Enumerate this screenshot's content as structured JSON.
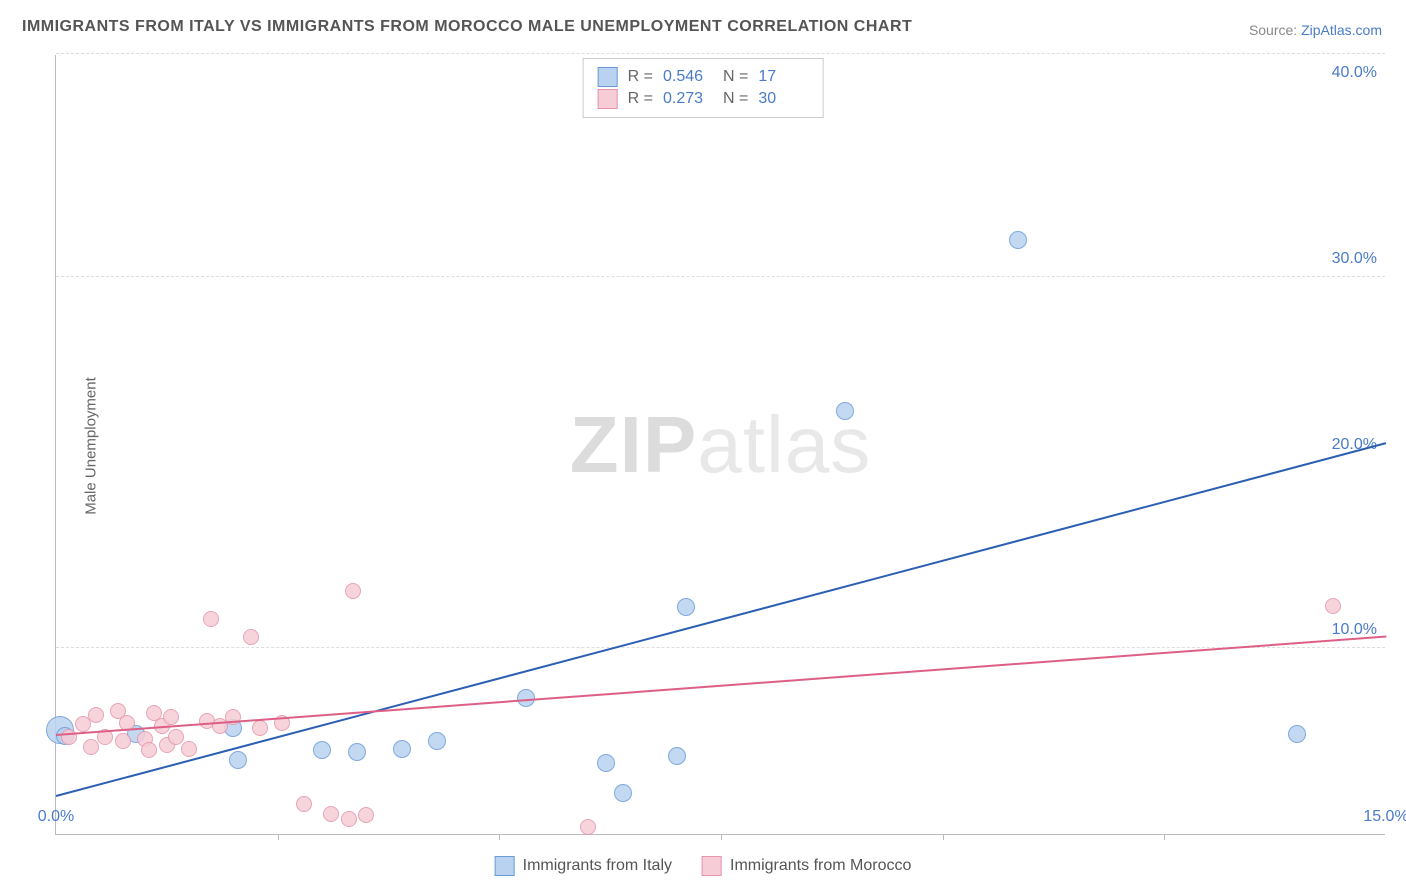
{
  "title": "IMMIGRANTS FROM ITALY VS IMMIGRANTS FROM MOROCCO MALE UNEMPLOYMENT CORRELATION CHART",
  "source_label": "Source: ",
  "source_link": "ZipAtlas.com",
  "ylabel": "Male Unemployment",
  "watermark_a": "ZIP",
  "watermark_b": "atlas",
  "chart": {
    "type": "scatter",
    "xlim": [
      0,
      15
    ],
    "ylim": [
      0,
      42
    ],
    "xticks": [
      0,
      15
    ],
    "xtick_labels": [
      "0.0%",
      "15.0%"
    ],
    "xtick_marks": [
      2.5,
      5.0,
      7.5,
      10.0,
      12.5
    ],
    "yticks": [
      10,
      20,
      30,
      40
    ],
    "ytick_labels": [
      "10.0%",
      "20.0%",
      "30.0%",
      "40.0%"
    ],
    "gridlines": [
      10,
      30,
      42
    ],
    "background_color": "#ffffff",
    "grid_color": "#dddddd",
    "axis_color": "#bbbbbb",
    "series": [
      {
        "name": "Immigrants from Italy",
        "marker_fill": "#b9d2ef",
        "marker_stroke": "#6a9bd8",
        "line_color": "#2c5fb3",
        "marker_radius": 9,
        "R": "0.546",
        "N": "17",
        "trend": {
          "x1": 0,
          "y1": 2.0,
          "x2": 15,
          "y2": 21.0
        },
        "points": [
          {
            "x": 0.05,
            "y": 5.6,
            "r": 14
          },
          {
            "x": 0.1,
            "y": 5.3,
            "r": 9
          },
          {
            "x": 0.9,
            "y": 5.4,
            "r": 9
          },
          {
            "x": 2.0,
            "y": 5.7,
            "r": 9
          },
          {
            "x": 2.05,
            "y": 4.0,
            "r": 9
          },
          {
            "x": 3.0,
            "y": 4.5,
            "r": 9
          },
          {
            "x": 3.4,
            "y": 4.4,
            "r": 9
          },
          {
            "x": 3.9,
            "y": 4.6,
            "r": 9
          },
          {
            "x": 4.3,
            "y": 5.0,
            "r": 9
          },
          {
            "x": 5.3,
            "y": 7.3,
            "r": 9
          },
          {
            "x": 6.2,
            "y": 3.8,
            "r": 9
          },
          {
            "x": 6.4,
            "y": 2.2,
            "r": 9
          },
          {
            "x": 7.1,
            "y": 12.2,
            "r": 9
          },
          {
            "x": 7.0,
            "y": 4.2,
            "r": 9
          },
          {
            "x": 8.9,
            "y": 22.8,
            "r": 9
          },
          {
            "x": 10.85,
            "y": 32.0,
            "r": 9
          },
          {
            "x": 14.0,
            "y": 5.4,
            "r": 9
          }
        ]
      },
      {
        "name": "Immigrants from Morocco",
        "marker_fill": "#f6cdd7",
        "marker_stroke": "#e594ab",
        "line_color": "#de5f85",
        "marker_radius": 8,
        "R": "0.273",
        "N": "30",
        "trend": {
          "x1": 0,
          "y1": 5.3,
          "x2": 15,
          "y2": 10.6
        },
        "points": [
          {
            "x": 0.15,
            "y": 5.2,
            "r": 8
          },
          {
            "x": 0.3,
            "y": 5.9,
            "r": 8
          },
          {
            "x": 0.4,
            "y": 4.7,
            "r": 8
          },
          {
            "x": 0.45,
            "y": 6.4,
            "r": 8
          },
          {
            "x": 0.55,
            "y": 5.2,
            "r": 8
          },
          {
            "x": 0.7,
            "y": 6.6,
            "r": 8
          },
          {
            "x": 0.75,
            "y": 5.0,
            "r": 8
          },
          {
            "x": 0.8,
            "y": 6.0,
            "r": 8
          },
          {
            "x": 1.0,
            "y": 5.1,
            "r": 8
          },
          {
            "x": 1.05,
            "y": 4.5,
            "r": 8
          },
          {
            "x": 1.1,
            "y": 6.5,
            "r": 8
          },
          {
            "x": 1.2,
            "y": 5.8,
            "r": 8
          },
          {
            "x": 1.25,
            "y": 4.8,
            "r": 8
          },
          {
            "x": 1.3,
            "y": 6.3,
            "r": 8
          },
          {
            "x": 1.35,
            "y": 5.2,
            "r": 8
          },
          {
            "x": 1.5,
            "y": 4.6,
            "r": 8
          },
          {
            "x": 1.7,
            "y": 6.1,
            "r": 8
          },
          {
            "x": 1.75,
            "y": 11.6,
            "r": 8
          },
          {
            "x": 1.85,
            "y": 5.8,
            "r": 8
          },
          {
            "x": 2.0,
            "y": 6.3,
            "r": 8
          },
          {
            "x": 2.2,
            "y": 10.6,
            "r": 8
          },
          {
            "x": 2.3,
            "y": 5.7,
            "r": 8
          },
          {
            "x": 2.55,
            "y": 6.0,
            "r": 8
          },
          {
            "x": 2.8,
            "y": 1.6,
            "r": 8
          },
          {
            "x": 3.1,
            "y": 1.1,
            "r": 8
          },
          {
            "x": 3.3,
            "y": 0.8,
            "r": 8
          },
          {
            "x": 3.35,
            "y": 13.1,
            "r": 8
          },
          {
            "x": 3.5,
            "y": 1.0,
            "r": 8
          },
          {
            "x": 6.0,
            "y": 0.4,
            "r": 8
          },
          {
            "x": 14.4,
            "y": 12.3,
            "r": 8
          }
        ]
      }
    ]
  },
  "legend_top": {
    "r_label": "R =",
    "n_label": "N ="
  }
}
